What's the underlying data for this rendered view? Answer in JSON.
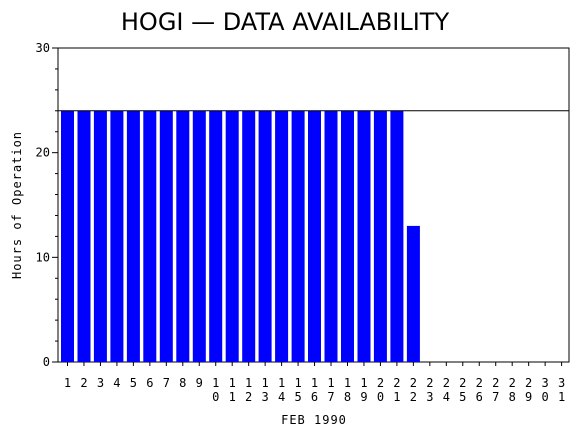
{
  "chart_data": {
    "type": "bar",
    "title": "HOGI — DATA AVAILABILITY",
    "xlabel": "FEB 1990",
    "ylabel": "Hours of Operation",
    "ylim": [
      0,
      30
    ],
    "yticks": [
      0,
      10,
      20,
      30
    ],
    "reference_line": 24,
    "bar_color": "#0000ff",
    "grid": false,
    "categories": [
      "1",
      "2",
      "3",
      "4",
      "5",
      "6",
      "7",
      "8",
      "9",
      "10",
      "11",
      "12",
      "13",
      "14",
      "15",
      "16",
      "17",
      "18",
      "19",
      "20",
      "21",
      "22",
      "23",
      "24",
      "25",
      "26",
      "27",
      "28",
      "29",
      "30",
      "31"
    ],
    "values": [
      24,
      24,
      24,
      24,
      24,
      24,
      24,
      24,
      24,
      24,
      24,
      24,
      24,
      24,
      24,
      24,
      24,
      24,
      24,
      24,
      24,
      13,
      0,
      0,
      0,
      0,
      0,
      0,
      0,
      0,
      0
    ]
  }
}
